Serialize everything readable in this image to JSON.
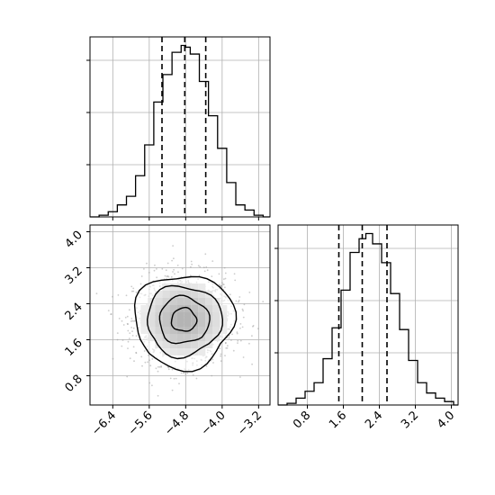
{
  "chart_data": [
    {
      "type": "histogram",
      "panel": "marginal-x",
      "x_ticks": [
        -6.4,
        -5.6,
        -4.8,
        -4.0,
        -3.2
      ],
      "x_range": [
        -6.9,
        -2.95
      ],
      "bin_edges": [
        -6.9,
        -6.7,
        -6.5,
        -6.3,
        -6.1,
        -5.9,
        -5.7,
        -5.5,
        -5.3,
        -5.1,
        -4.9,
        -4.8,
        -4.7,
        -4.5,
        -4.3,
        -4.1,
        -3.9,
        -3.7,
        -3.5,
        -3.3,
        -3.1,
        -2.95
      ],
      "counts": [
        0.0,
        0.01,
        0.03,
        0.07,
        0.12,
        0.24,
        0.42,
        0.67,
        0.83,
        0.96,
        1.0,
        0.99,
        0.95,
        0.79,
        0.59,
        0.4,
        0.2,
        0.07,
        0.04,
        0.01,
        0.0
      ],
      "quantile_lines": [
        -5.32,
        -4.82,
        -4.36
      ],
      "y_range": [
        0,
        1.05
      ],
      "grid": true
    },
    {
      "type": "contour-scatter",
      "panel": "joint",
      "x_ticks": [
        -6.4,
        -5.6,
        -4.8,
        -4.0,
        -3.2
      ],
      "y_ticks": [
        0.8,
        1.6,
        2.4,
        3.2,
        4.0
      ],
      "x_range": [
        -6.9,
        -2.95
      ],
      "y_range": [
        0.15,
        4.15
      ],
      "center": [
        -4.84,
        2.05
      ],
      "spread": [
        0.55,
        0.5
      ],
      "grid": true
    },
    {
      "type": "histogram",
      "panel": "marginal-y",
      "x_ticks": [
        0.8,
        1.6,
        2.4,
        3.2,
        4.0
      ],
      "x_range": [
        0.15,
        4.15
      ],
      "bin_edges": [
        0.15,
        0.35,
        0.55,
        0.75,
        0.95,
        1.15,
        1.35,
        1.55,
        1.75,
        1.95,
        2.1,
        2.25,
        2.45,
        2.65,
        2.85,
        3.05,
        3.25,
        3.45,
        3.65,
        3.85,
        4.05,
        4.15
      ],
      "counts": [
        0.0,
        0.01,
        0.04,
        0.08,
        0.13,
        0.27,
        0.45,
        0.67,
        0.89,
        0.97,
        1.0,
        0.94,
        0.83,
        0.65,
        0.44,
        0.26,
        0.13,
        0.07,
        0.04,
        0.02,
        0.0
      ],
      "quantile_lines": [
        1.5,
        2.02,
        2.57
      ],
      "y_range": [
        0,
        1.05
      ],
      "grid": true
    }
  ],
  "colors": {
    "line": "#000000",
    "grid": "#b0b0b0",
    "scatter": "#9a9a9a"
  }
}
